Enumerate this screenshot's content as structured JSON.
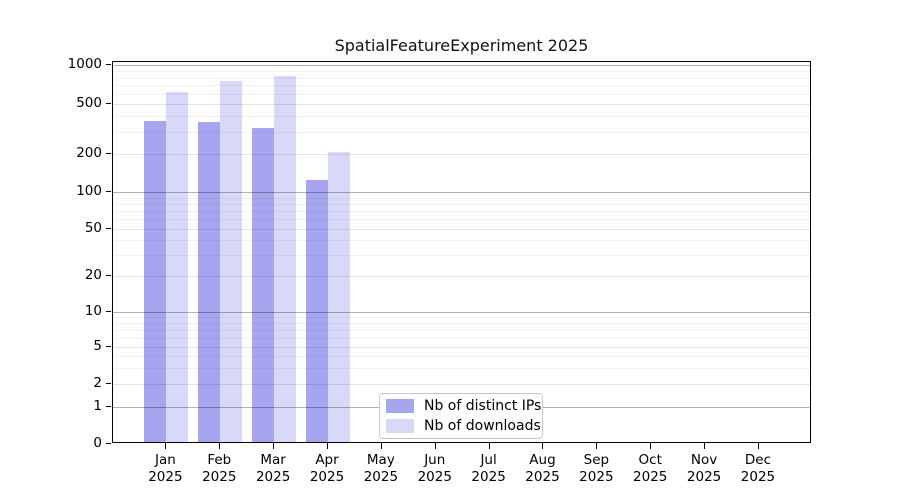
{
  "title": "SpatialFeatureExperiment 2025",
  "chart_data": {
    "type": "bar",
    "title": "SpatialFeatureExperiment 2025",
    "categories": [
      "Jan",
      "Feb",
      "Mar",
      "Apr",
      "May",
      "Jun",
      "Jul",
      "Aug",
      "Sep",
      "Oct",
      "Nov",
      "Dec"
    ],
    "category_year": "2025",
    "series": [
      {
        "name": "Nb of distinct IPs",
        "color": "#a5a5f0",
        "values": [
          350,
          345,
          310,
          120,
          null,
          null,
          null,
          null,
          null,
          null,
          null,
          null
        ]
      },
      {
        "name": "Nb of downloads",
        "color": "#d8d9f8",
        "values": [
          600,
          730,
          790,
          200,
          null,
          null,
          null,
          null,
          null,
          null,
          null,
          null
        ]
      }
    ],
    "y_axis": {
      "scale": "symlog-like",
      "tick_values": [
        0,
        1,
        2,
        5,
        10,
        20,
        50,
        100,
        200,
        500,
        1000
      ],
      "tick_labels": [
        "0",
        "1",
        "2",
        "5",
        "10",
        "20",
        "50",
        "100",
        "200",
        "500",
        "1000"
      ],
      "ylim": [
        0,
        1000
      ],
      "grid": "horizontal"
    },
    "x_axis": {
      "label_format": "month over year"
    },
    "legend": {
      "position": "inside-bottom-center-left",
      "entries": [
        "Nb of distinct IPs",
        "Nb of downloads"
      ]
    }
  }
}
